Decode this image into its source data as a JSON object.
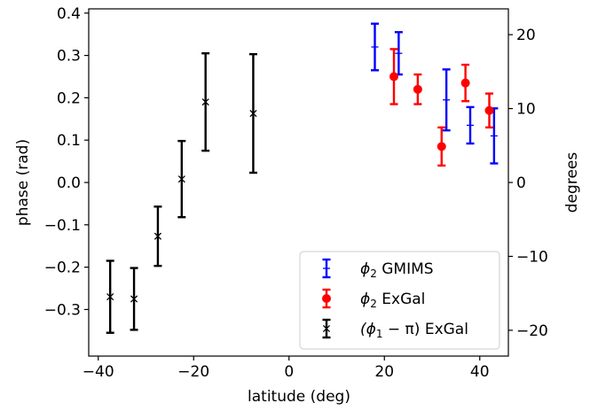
{
  "chart_data": {
    "type": "scatter",
    "xlabel": "latitude (deg)",
    "ylabel": "phase (rad)",
    "ylabel_right": "degrees",
    "xlim": [
      -42,
      46
    ],
    "ylim": [
      -0.41,
      0.41
    ],
    "x_ticks": [
      {
        "value": -40,
        "label": "−40"
      },
      {
        "value": -20,
        "label": "−20"
      },
      {
        "value": 0,
        "label": "0"
      },
      {
        "value": 20,
        "label": "20"
      },
      {
        "value": 40,
        "label": "40"
      }
    ],
    "y_ticks": [
      {
        "value": -0.3,
        "label": "−0.3"
      },
      {
        "value": -0.2,
        "label": "−0.2"
      },
      {
        "value": -0.1,
        "label": "−0.1"
      },
      {
        "value": 0.0,
        "label": "0.0"
      },
      {
        "value": 0.1,
        "label": "0.1"
      },
      {
        "value": 0.2,
        "label": "0.2"
      },
      {
        "value": 0.3,
        "label": "0.3"
      },
      {
        "value": 0.4,
        "label": "0.4"
      }
    ],
    "y2_ticks": [
      {
        "value": -20,
        "label": "−20"
      },
      {
        "value": -10,
        "label": "−10"
      },
      {
        "value": 0,
        "label": "0"
      },
      {
        "value": 10,
        "label": "10"
      },
      {
        "value": 20,
        "label": "20"
      }
    ],
    "legend_position": "lower-right",
    "series": [
      {
        "name": "GMIMS",
        "name_prefix": "ϕ",
        "name_sub": "2",
        "color": "#0000ff",
        "marker": "tick",
        "x": [
          18,
          23,
          33,
          38,
          43
        ],
        "y": [
          0.32,
          0.305,
          0.195,
          0.135,
          0.11
        ],
        "err": [
          0.055,
          0.05,
          0.072,
          0.043,
          0.065
        ]
      },
      {
        "name": "ExGal",
        "name_prefix": "ϕ",
        "name_sub": "2",
        "color": "#ff0000",
        "marker": "circle",
        "x": [
          22,
          27,
          32,
          37,
          42
        ],
        "y": [
          0.25,
          0.22,
          0.085,
          0.235,
          0.17
        ],
        "err": [
          0.065,
          0.035,
          0.045,
          0.043,
          0.04
        ]
      },
      {
        "name": "ExGal",
        "name_prefix": "(ϕ",
        "name_sub": "1",
        "name_mid": " − π)",
        "color": "#000000",
        "marker": "x",
        "x": [
          -37.5,
          -32.5,
          -27.5,
          -22.5,
          -17.5,
          -7.5
        ],
        "y": [
          -0.27,
          -0.275,
          -0.127,
          0.008,
          0.19,
          0.163
        ],
        "err": [
          0.085,
          0.073,
          0.07,
          0.09,
          0.115,
          0.14
        ]
      }
    ]
  }
}
